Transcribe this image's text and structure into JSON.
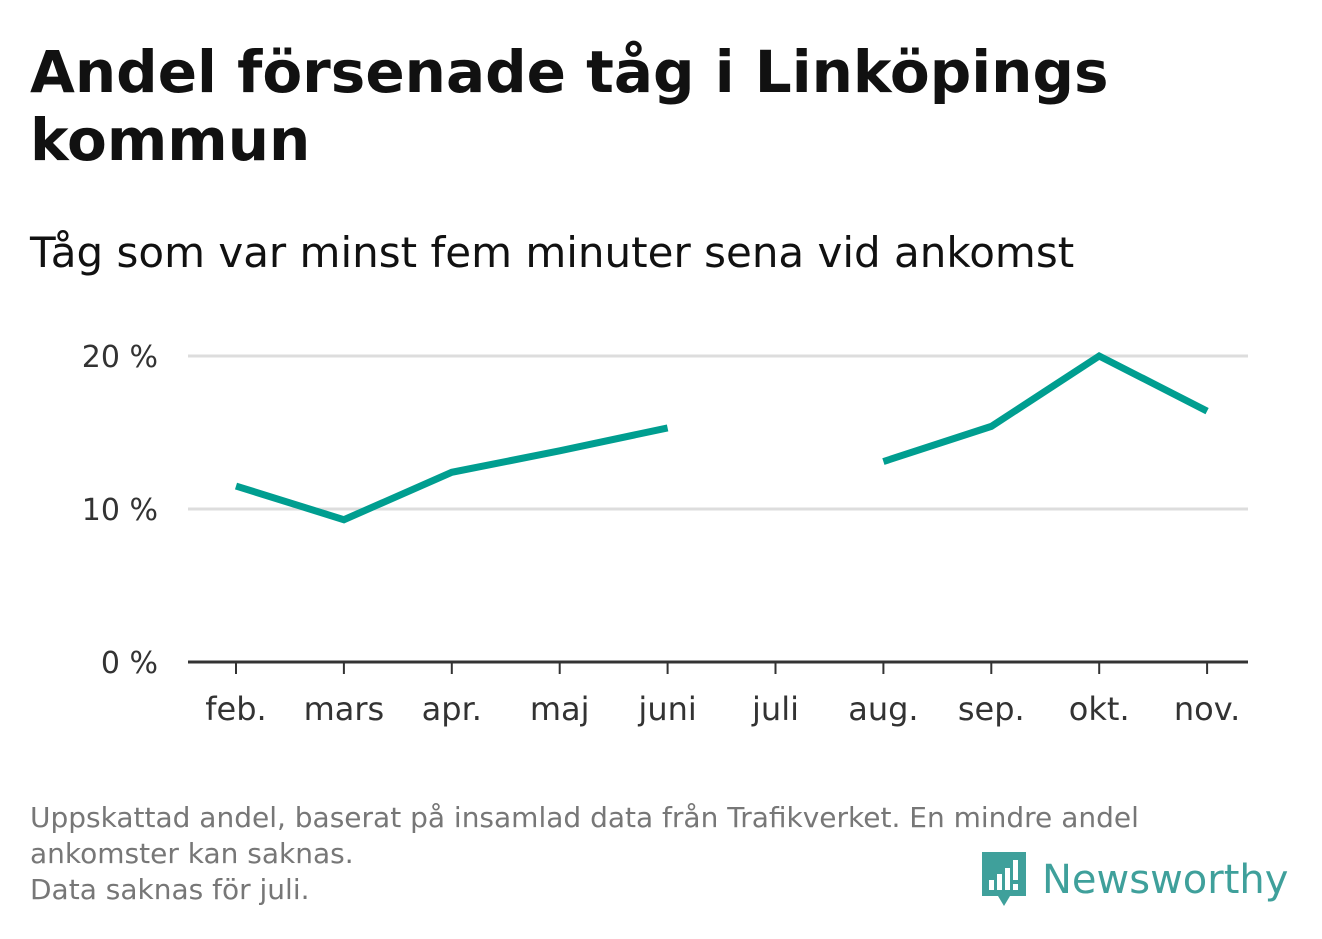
{
  "title": "Andel försenade tåg i Linköpings kommun",
  "subtitle": "Tåg som var minst fem minuter sena vid ankomst",
  "footnote": [
    "Uppskattad andel, baserat på insamlad data från Trafikverket. En mindre andel",
    "ankomster kan saknas.",
    "Data saknas för juli."
  ],
  "logo": {
    "text": "Newsworthy",
    "icon": "newsworthy-logo-icon",
    "color": "#3fa09b"
  },
  "chart_data": {
    "type": "line",
    "title": "Andel försenade tåg i Linköpings kommun",
    "subtitle": "Tåg som var minst fem minuter sena vid ankomst",
    "xlabel": "",
    "ylabel": "",
    "categories": [
      "feb.",
      "mars",
      "apr.",
      "maj",
      "juni",
      "juli",
      "aug.",
      "sep.",
      "okt.",
      "nov."
    ],
    "series": [
      {
        "values": [
          11.5,
          9.3,
          12.4,
          13.8,
          15.3,
          null,
          13.1,
          15.4,
          20.0,
          16.4
        ],
        "color": "#009e90"
      }
    ],
    "ylim": [
      0,
      20
    ],
    "yticks": [
      0,
      10,
      20
    ],
    "ytick_labels": [
      "0 %",
      "10 %",
      "20 %"
    ],
    "grid": true,
    "legend": "none"
  }
}
